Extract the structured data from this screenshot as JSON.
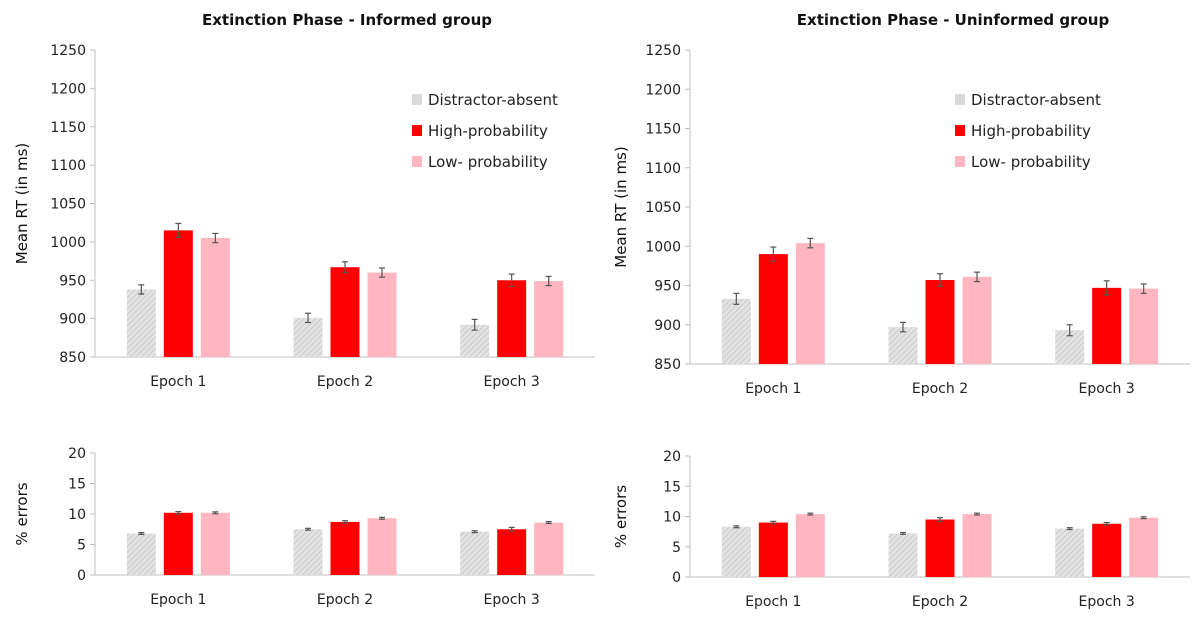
{
  "colors": {
    "distractor_absent": "#d9d9d9",
    "high_probability": "#ff0000",
    "low_probability": "#ffb6c1",
    "axis": "#bfbfbf",
    "error_bar": "#555555"
  },
  "chart_data": [
    {
      "id": "rt-informed",
      "type": "bar",
      "title": "Extinction Phase - Informed group",
      "xlabel": "",
      "ylabel": "Mean RT (in ms)",
      "ylim": [
        850,
        1250
      ],
      "yticks": [
        850,
        900,
        950,
        1000,
        1050,
        1100,
        1150,
        1200,
        1250
      ],
      "categories": [
        "Epoch 1",
        "Epoch 2",
        "Epoch 3"
      ],
      "legend": "top-right",
      "series": [
        {
          "name": "Distractor-absent",
          "values": [
            938,
            901,
            892
          ],
          "errors": [
            6,
            6,
            7
          ]
        },
        {
          "name": "High-probability",
          "values": [
            1015,
            967,
            950
          ],
          "errors": [
            9,
            7,
            8
          ]
        },
        {
          "name": "Low- probability",
          "values": [
            1005,
            960,
            949
          ],
          "errors": [
            6,
            6,
            6
          ]
        }
      ]
    },
    {
      "id": "rt-uninformed",
      "type": "bar",
      "title": "Extinction Phase - Uninformed group",
      "xlabel": "",
      "ylabel": "Mean RT (in ms)",
      "ylim": [
        850,
        1250
      ],
      "yticks": [
        850,
        900,
        950,
        1000,
        1050,
        1100,
        1150,
        1200,
        1250
      ],
      "categories": [
        "Epoch 1",
        "Epoch 2",
        "Epoch 3"
      ],
      "legend": "top-right",
      "series": [
        {
          "name": "Distractor-absent",
          "values": [
            933,
            897,
            893
          ],
          "errors": [
            7,
            6,
            7
          ]
        },
        {
          "name": "High-probability",
          "values": [
            990,
            957,
            947
          ],
          "errors": [
            9,
            8,
            9
          ]
        },
        {
          "name": "Low- probability",
          "values": [
            1004,
            961,
            946
          ],
          "errors": [
            6,
            6,
            6
          ]
        }
      ]
    },
    {
      "id": "err-informed",
      "type": "bar",
      "title": "",
      "xlabel": "",
      "ylabel": "% errors",
      "ylim": [
        0,
        20
      ],
      "yticks": [
        0,
        5,
        10,
        15,
        20
      ],
      "categories": [
        "Epoch 1",
        "Epoch 2",
        "Epoch 3"
      ],
      "series": [
        {
          "name": "Distractor-absent",
          "values": [
            6.8,
            7.5,
            7.1
          ],
          "errors": [
            0.15,
            0.15,
            0.15
          ]
        },
        {
          "name": "High-probability",
          "values": [
            10.2,
            8.7,
            7.5
          ],
          "errors": [
            0.2,
            0.2,
            0.3
          ]
        },
        {
          "name": "Low- probability",
          "values": [
            10.2,
            9.3,
            8.6
          ],
          "errors": [
            0.15,
            0.15,
            0.15
          ]
        }
      ]
    },
    {
      "id": "err-uninformed",
      "type": "bar",
      "title": "",
      "xlabel": "",
      "ylabel": "% errors",
      "ylim": [
        0,
        20
      ],
      "yticks": [
        0,
        5,
        10,
        15,
        20
      ],
      "categories": [
        "Epoch 1",
        "Epoch 2",
        "Epoch 3"
      ],
      "series": [
        {
          "name": "Distractor-absent",
          "values": [
            8.3,
            7.2,
            8.0
          ],
          "errors": [
            0.15,
            0.15,
            0.15
          ]
        },
        {
          "name": "High-probability",
          "values": [
            9.0,
            9.5,
            8.8
          ],
          "errors": [
            0.2,
            0.3,
            0.2
          ]
        },
        {
          "name": "Low- probability",
          "values": [
            10.4,
            10.4,
            9.8
          ],
          "errors": [
            0.15,
            0.15,
            0.15
          ]
        }
      ]
    }
  ]
}
